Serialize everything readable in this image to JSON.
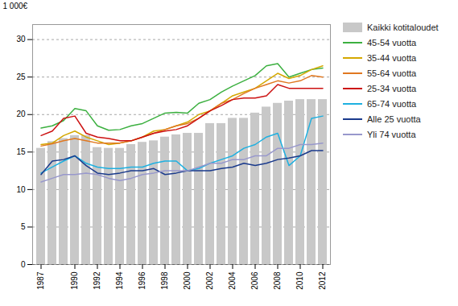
{
  "chart_data": {
    "type": "bar",
    "x": [
      1987,
      1988,
      1989,
      1990,
      1991,
      1992,
      1993,
      1994,
      1995,
      1996,
      1997,
      1998,
      1999,
      2000,
      2001,
      2002,
      2003,
      2004,
      2005,
      2006,
      2007,
      2008,
      2009,
      2010,
      2011,
      2012
    ],
    "series": [
      {
        "name": "Kaikki kotitaloudet",
        "type": "bar",
        "color": "#c8c8c8",
        "values": [
          15.5,
          16.4,
          16.8,
          17.2,
          17.2,
          15.6,
          15.5,
          15.5,
          16.0,
          16.3,
          16.5,
          17.0,
          17.3,
          17.5,
          17.5,
          18.8,
          18.8,
          19.5,
          19.5,
          20.2,
          21.0,
          21.5,
          21.8,
          22.0,
          22.0,
          22.0
        ]
      },
      {
        "name": "45-54 vuotta",
        "type": "line",
        "color": "#3cb040",
        "values": [
          18.2,
          18.5,
          19.2,
          20.8,
          20.5,
          18.5,
          17.9,
          18.0,
          18.5,
          18.8,
          19.5,
          20.2,
          20.3,
          20.2,
          21.5,
          22.0,
          23.0,
          23.8,
          24.5,
          25.2,
          26.5,
          26.8,
          25.0,
          25.5,
          26.0,
          26.2
        ]
      },
      {
        "name": "35-44 vuotta",
        "type": "line",
        "color": "#d4a800",
        "values": [
          16.0,
          16.2,
          17.2,
          17.8,
          17.0,
          16.5,
          16.0,
          16.2,
          16.5,
          17.0,
          17.8,
          18.0,
          18.5,
          19.0,
          20.0,
          20.5,
          21.5,
          22.5,
          23.0,
          23.5,
          24.5,
          25.5,
          24.8,
          25.2,
          26.0,
          26.5
        ]
      },
      {
        "name": "55-64 vuotta",
        "type": "line",
        "color": "#e07820",
        "values": [
          15.8,
          16.1,
          16.5,
          16.8,
          16.5,
          16.2,
          16.2,
          16.2,
          16.5,
          17.0,
          17.5,
          18.0,
          18.5,
          18.8,
          19.5,
          20.5,
          21.5,
          22.0,
          22.8,
          23.5,
          24.0,
          24.5,
          24.2,
          24.5,
          25.2,
          25.0
        ]
      },
      {
        "name": "25-34 vuotta",
        "type": "line",
        "color": "#cc1111",
        "values": [
          17.2,
          17.8,
          19.5,
          19.8,
          17.5,
          17.0,
          16.8,
          16.5,
          16.5,
          17.0,
          17.5,
          17.8,
          18.0,
          18.5,
          19.5,
          20.5,
          21.2,
          22.0,
          22.2,
          22.2,
          22.5,
          24.0,
          23.5,
          23.5,
          23.5,
          23.5
        ]
      },
      {
        "name": "65-74 vuotta",
        "type": "line",
        "color": "#1eb0e0",
        "values": [
          12.2,
          13.0,
          13.8,
          14.5,
          13.5,
          13.0,
          12.8,
          12.8,
          13.0,
          13.0,
          13.5,
          13.8,
          13.8,
          12.5,
          12.8,
          13.5,
          14.0,
          14.5,
          15.5,
          16.0,
          17.0,
          17.5,
          13.2,
          14.5,
          19.5,
          19.8
        ]
      },
      {
        "name": "Alle 25 vuotta",
        "type": "line",
        "color": "#1a3a8c",
        "values": [
          12.0,
          13.8,
          14.0,
          14.5,
          13.2,
          12.2,
          12.0,
          12.2,
          12.5,
          12.5,
          12.8,
          12.0,
          12.2,
          12.5,
          12.5,
          12.5,
          12.8,
          13.0,
          13.5,
          13.2,
          13.5,
          14.0,
          14.2,
          14.5,
          15.2,
          15.2
        ]
      },
      {
        "name": "Yli 74 vuotta",
        "type": "line",
        "color": "#9898cc",
        "values": [
          11.0,
          11.5,
          12.0,
          12.0,
          12.2,
          12.0,
          11.5,
          11.2,
          11.5,
          12.0,
          12.2,
          12.5,
          12.5,
          12.5,
          13.0,
          13.5,
          13.5,
          14.0,
          14.0,
          14.5,
          14.5,
          15.5,
          15.5,
          16.0,
          16.0,
          16.2
        ]
      }
    ],
    "ylabel": "1 000€",
    "ylim": [
      0,
      32
    ],
    "yticks": [
      0,
      5,
      10,
      15,
      20,
      25,
      30
    ],
    "xticks": [
      1987,
      1990,
      1992,
      1994,
      1996,
      1998,
      2000,
      2002,
      2004,
      2006,
      2008,
      2010,
      2012
    ],
    "grid": true,
    "legend": "right"
  }
}
